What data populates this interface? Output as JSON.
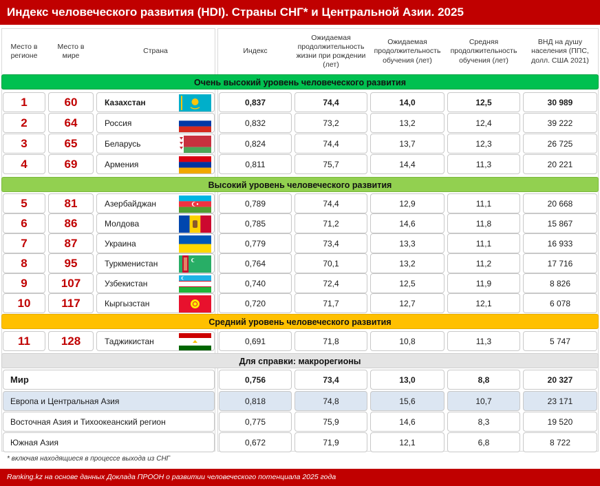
{
  "title": "Индекс человеческого развития (HDI). Страны СНГ* и Центральной Азии. 2025",
  "headers": {
    "place_region": "Место в регионе",
    "place_world": "Место в мире",
    "country": "Страна",
    "index": "Индекс",
    "life_exp": "Ожидаемая продолжительность жизни при рождении (лет)",
    "exp_school": "Ожидаемая продолжительность обучения (лет)",
    "mean_school": "Средняя продолжительность обучения (лет)",
    "gni": "ВНД на душу населения (ППС, долл. США 2021)"
  },
  "bands": {
    "very_high": "Очень высокий уровень человеческого развития",
    "high": "Высокий уровень человеческого развития",
    "medium": "Средний уровень человеческого развития",
    "reference": "Для справки: макрорегионы"
  },
  "countries": [
    {
      "region_rank": "1",
      "world_rank": "60",
      "name": "Казахстан",
      "flag": "kazakhstan-flag",
      "index": "0,837",
      "life": "74,4",
      "exp": "14,0",
      "mean": "12,5",
      "gni": "30 989"
    },
    {
      "region_rank": "2",
      "world_rank": "64",
      "name": "Россия",
      "flag": "russia-flag",
      "index": "0,832",
      "life": "73,2",
      "exp": "13,2",
      "mean": "12,4",
      "gni": "39 222"
    },
    {
      "region_rank": "3",
      "world_rank": "65",
      "name": "Беларусь",
      "flag": "belarus-flag",
      "index": "0,824",
      "life": "74,4",
      "exp": "13,7",
      "mean": "12,3",
      "gni": "26 725"
    },
    {
      "region_rank": "4",
      "world_rank": "69",
      "name": "Армения",
      "flag": "armenia-flag",
      "index": "0,811",
      "life": "75,7",
      "exp": "14,4",
      "mean": "11,3",
      "gni": "20 221"
    },
    {
      "region_rank": "5",
      "world_rank": "81",
      "name": "Азербайджан",
      "flag": "azerbaijan-flag",
      "index": "0,789",
      "life": "74,4",
      "exp": "12,9",
      "mean": "11,1",
      "gni": "20 668"
    },
    {
      "region_rank": "6",
      "world_rank": "86",
      "name": "Молдова",
      "flag": "moldova-flag",
      "index": "0,785",
      "life": "71,2",
      "exp": "14,6",
      "mean": "11,8",
      "gni": "15 867"
    },
    {
      "region_rank": "7",
      "world_rank": "87",
      "name": "Украина",
      "flag": "ukraine-flag",
      "index": "0,779",
      "life": "73,4",
      "exp": "13,3",
      "mean": "11,1",
      "gni": "16 933"
    },
    {
      "region_rank": "8",
      "world_rank": "95",
      "name": "Туркменистан",
      "flag": "turkmenistan-flag",
      "index": "0,764",
      "life": "70,1",
      "exp": "13,2",
      "mean": "11,2",
      "gni": "17 716"
    },
    {
      "region_rank": "9",
      "world_rank": "107",
      "name": "Узбекистан",
      "flag": "uzbekistan-flag",
      "index": "0,740",
      "life": "72,4",
      "exp": "12,5",
      "mean": "11,9",
      "gni": "8 826"
    },
    {
      "region_rank": "10",
      "world_rank": "117",
      "name": "Кыргызстан",
      "flag": "kyrgyzstan-flag",
      "index": "0,720",
      "life": "71,7",
      "exp": "12,7",
      "mean": "12,1",
      "gni": "6 078"
    },
    {
      "region_rank": "11",
      "world_rank": "128",
      "name": "Таджикистан",
      "flag": "tajikistan-flag",
      "index": "0,691",
      "life": "71,8",
      "exp": "10,8",
      "mean": "11,3",
      "gni": "5 747"
    }
  ],
  "regions": [
    {
      "name": "Мир",
      "index": "0,756",
      "life": "73,4",
      "exp": "13,0",
      "mean": "8,8",
      "gni": "20 327"
    },
    {
      "name": "Европа и Центральная Азия",
      "index": "0,818",
      "life": "74,8",
      "exp": "15,6",
      "mean": "10,7",
      "gni": "23 171"
    },
    {
      "name": "Восточная Азия и Тихоокеанский регион",
      "index": "0,775",
      "life": "75,9",
      "exp": "14,6",
      "mean": "8,3",
      "gni": "19 520"
    },
    {
      "name": "Южная Азия",
      "index": "0,672",
      "life": "71,9",
      "exp": "12,1",
      "mean": "6,8",
      "gni": "8 722"
    }
  ],
  "footnote": "* включая находящиеся в процессе выхода из СНГ",
  "footer": "Ranking.kz на основе данных Доклада ПРООН о развитии человеческого потенциала 2025 года",
  "colors": {
    "brand_red": "#c00000",
    "very_high_band": "#00c050",
    "high_band": "#92d050",
    "medium_band": "#ffc000",
    "reference_band": "#e4e4e4",
    "highlight_row": "#dce6f2"
  }
}
